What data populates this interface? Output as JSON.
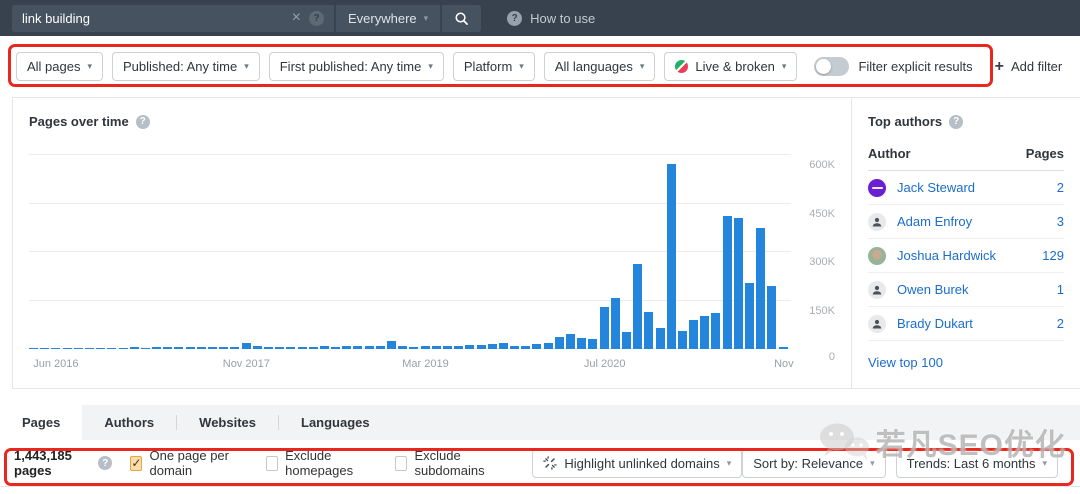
{
  "topbar": {
    "search_value": "link building",
    "scope_label": "Everywhere",
    "help_label": "How to use"
  },
  "filters": {
    "buttons": [
      {
        "label": "All pages"
      },
      {
        "label": "Published: Any time"
      },
      {
        "label": "First published: Any time"
      },
      {
        "label": "Platform"
      },
      {
        "label": "All languages"
      },
      {
        "label": "Live & broken",
        "icon": "live-broken-icon"
      }
    ],
    "toggle_label": "Filter explicit results",
    "toggle_on": false,
    "add_filter_label": "Add filter"
  },
  "chart_data": {
    "type": "bar",
    "title": "Pages over time",
    "unit": "pages, values in thousands",
    "bar_color": "#2385db",
    "y_max": 650,
    "yticks": [
      {
        "v": 600,
        "label": "600K"
      },
      {
        "v": 450,
        "label": "450K"
      },
      {
        "v": 300,
        "label": "300K"
      },
      {
        "v": 150,
        "label": "150K"
      },
      {
        "v": 0,
        "label": "0"
      }
    ],
    "xticks": [
      {
        "index": 2,
        "label": "Jun 2016"
      },
      {
        "index": 19,
        "label": "Nov 2017"
      },
      {
        "index": 35,
        "label": "Mar 2019"
      },
      {
        "index": 51,
        "label": "Jul 2020"
      },
      {
        "index": 67,
        "label": "Nov"
      }
    ],
    "x": [
      "Apr 2016",
      "May 2016",
      "Jun 2016",
      "Jul 2016",
      "Aug 2016",
      "Sep 2016",
      "Oct 2016",
      "Nov 2016",
      "Dec 2016",
      "Jan 2017",
      "Feb 2017",
      "Mar 2017",
      "Apr 2017",
      "May 2017",
      "Jun 2017",
      "Jul 2017",
      "Aug 2017",
      "Sep 2017",
      "Oct 2017",
      "Nov 2017",
      "Dec 2017",
      "Jan 2018",
      "Feb 2018",
      "Mar 2018",
      "Apr 2018",
      "May 2018",
      "Jun 2018",
      "Jul 2018",
      "Aug 2018",
      "Sep 2018",
      "Oct 2018",
      "Nov 2018",
      "Dec 2018",
      "Jan 2019",
      "Feb 2019",
      "Mar 2019",
      "Apr 2019",
      "May 2019",
      "Jun 2019",
      "Jul 2019",
      "Aug 2019",
      "Sep 2019",
      "Oct 2019",
      "Nov 2019",
      "Dec 2019",
      "Jan 2020",
      "Feb 2020",
      "Mar 2020",
      "Apr 2020",
      "May 2020",
      "Jun 2020",
      "Jul 2020",
      "Aug 2020",
      "Sep 2020",
      "Oct 2020",
      "Nov 2020",
      "Dec 2020",
      "Jan 2021",
      "Feb 2021",
      "Mar 2021",
      "Apr 2021",
      "May 2021",
      "Jun 2021",
      "Jul 2021",
      "Aug 2021",
      "Sep 2021",
      "Oct 2021",
      "Nov 2021"
    ],
    "values_thousands": [
      3,
      3,
      4,
      3,
      4,
      4,
      4,
      4,
      4,
      5,
      4,
      5,
      5,
      5,
      5,
      5,
      6,
      6,
      6,
      20,
      8,
      7,
      6,
      7,
      7,
      7,
      8,
      7,
      8,
      8,
      9,
      9,
      25,
      10,
      6,
      8,
      8,
      10,
      10,
      12,
      12,
      16,
      18,
      8,
      10,
      17,
      20,
      37,
      45,
      35,
      30,
      131,
      158,
      52,
      264,
      116,
      65,
      574,
      57,
      91,
      103,
      111,
      411,
      406,
      204,
      376,
      196,
      7
    ]
  },
  "top_authors": {
    "title": "Top authors",
    "header": {
      "author": "Author",
      "pages": "Pages"
    },
    "rows": [
      {
        "name": "Jack Steward",
        "pages": "2",
        "avatar": "brand-purple"
      },
      {
        "name": "Adam Enfroy",
        "pages": "3",
        "avatar": "person"
      },
      {
        "name": "Joshua Hardwick",
        "pages": "129",
        "avatar": "photo"
      },
      {
        "name": "Owen Burek",
        "pages": "1",
        "avatar": "person"
      },
      {
        "name": "Brady Dukart",
        "pages": "2",
        "avatar": "person"
      }
    ],
    "view_link": "View top 100"
  },
  "tabs": {
    "items": [
      "Pages",
      "Authors",
      "Websites",
      "Languages"
    ],
    "active": "Pages"
  },
  "toolbar": {
    "count_label": "1,443,185 pages",
    "checkboxes": [
      {
        "label": "One page per domain",
        "checked": true
      },
      {
        "label": "Exclude homepages",
        "checked": false
      },
      {
        "label": "Exclude subdomains",
        "checked": false
      }
    ],
    "highlight_label": "Highlight unlinked domains",
    "sort_label": "Sort by: Relevance",
    "trends_label": "Trends: Last 6 months"
  },
  "watermark": {
    "text": "若凡SEO优化"
  },
  "colors": {
    "bar_blue": "#2385db",
    "link_blue": "#1a6dcc",
    "topbar_bg": "#37424e",
    "annotation_red": "#e8281e",
    "checked_checkbox_bg": "#fbdcab"
  }
}
